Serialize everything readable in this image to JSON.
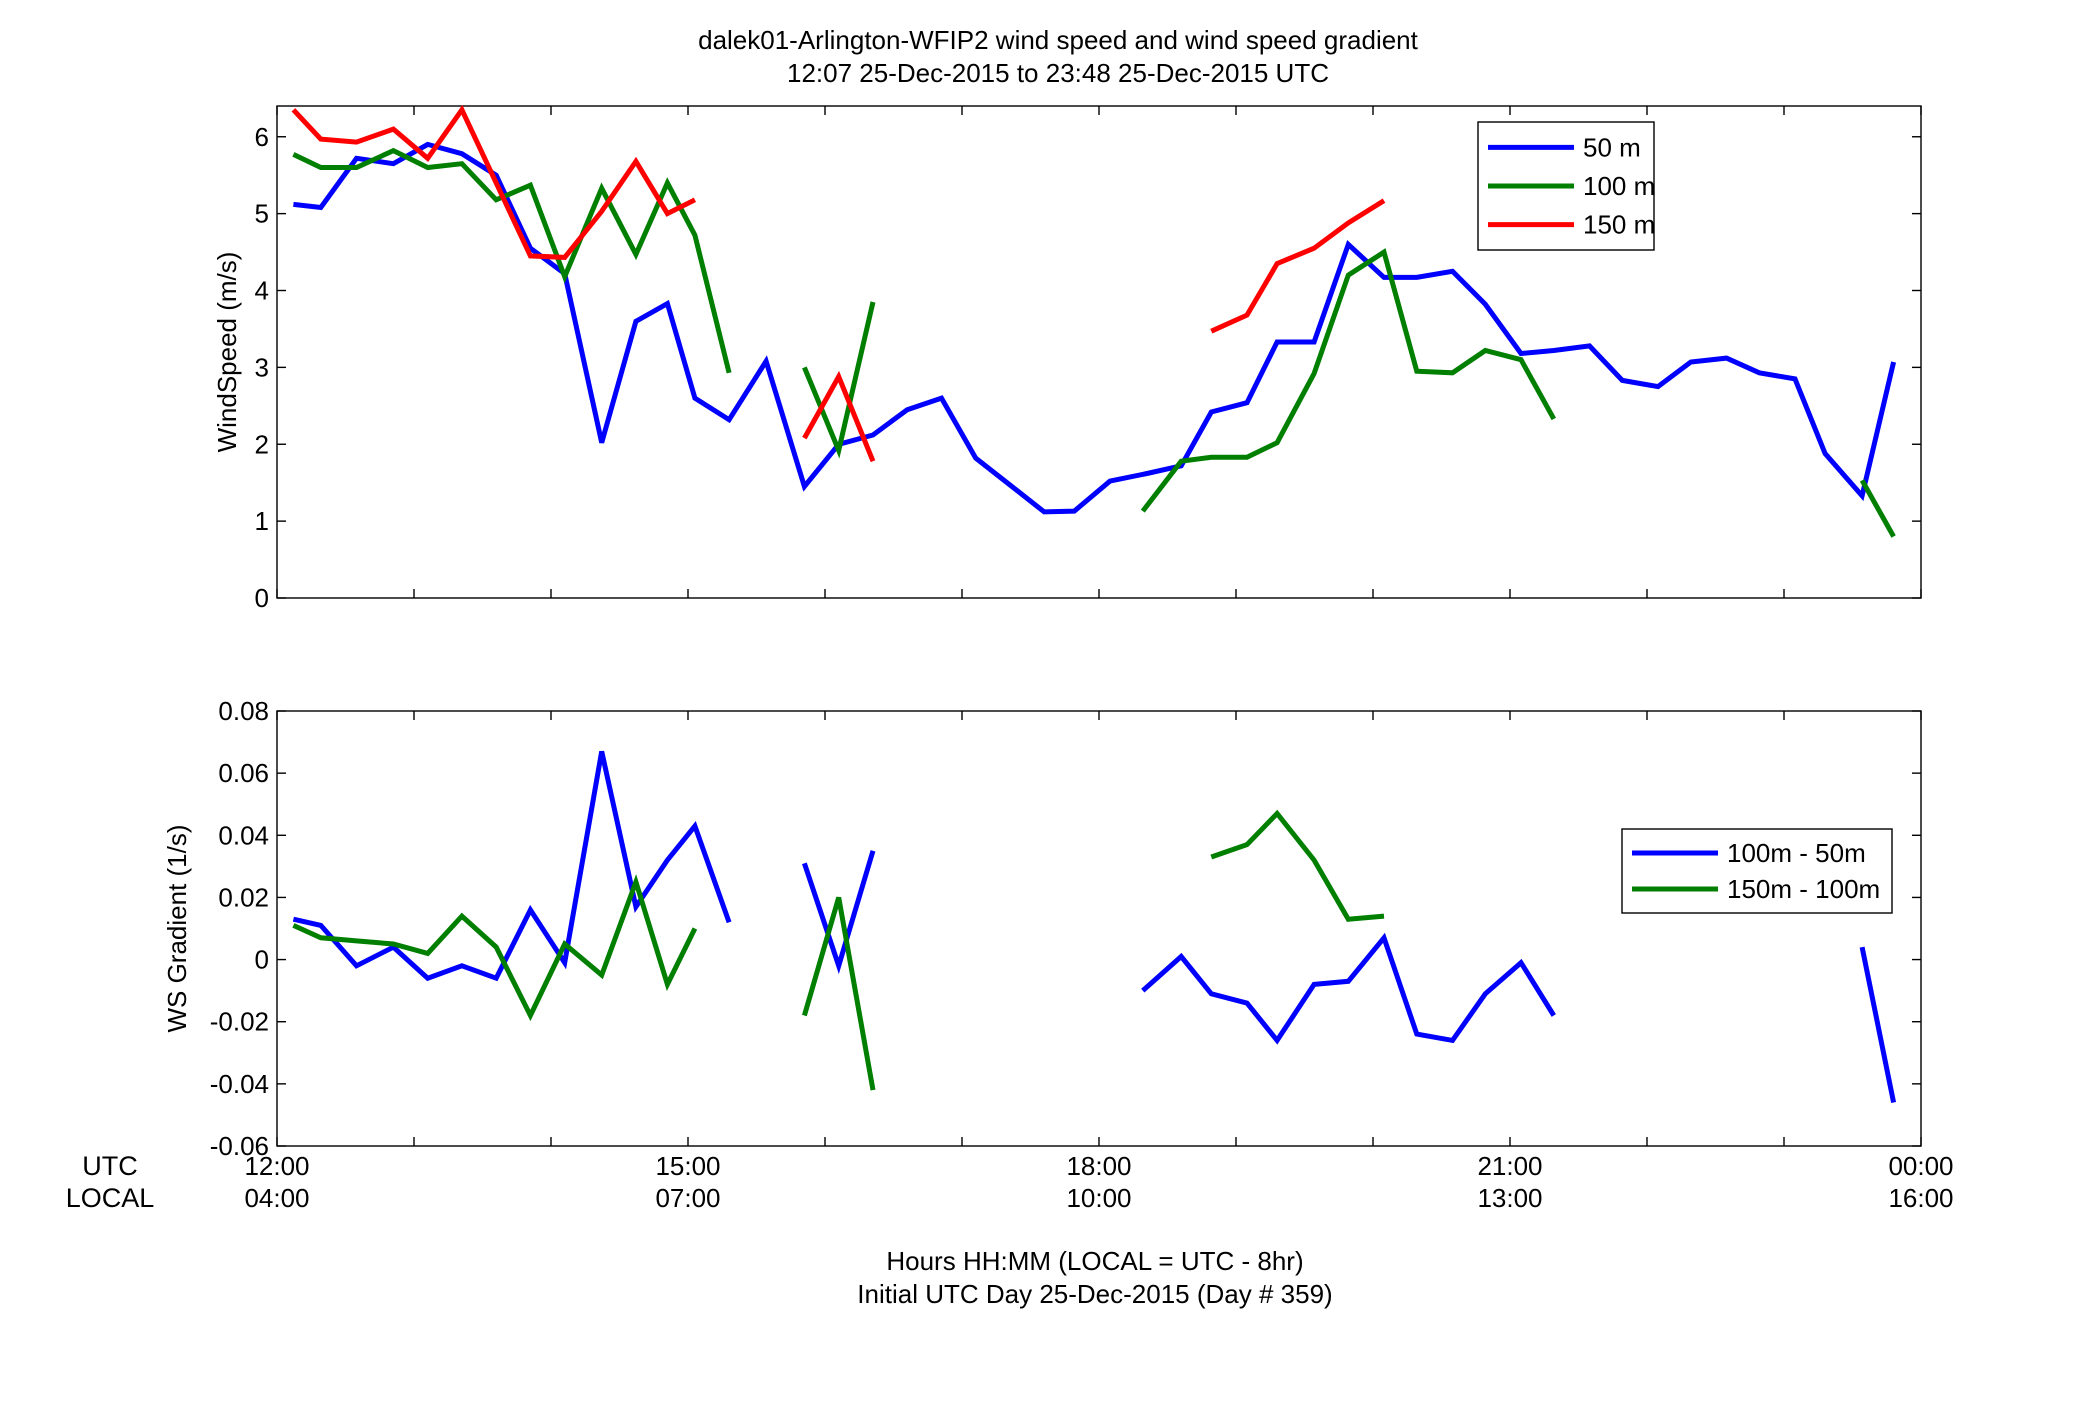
{
  "title_line1": "dalek01-Arlington-WFIP2  wind speed and wind speed gradient",
  "title_line2": "12:07 25-Dec-2015 to 23:48 25-Dec-2015  UTC",
  "row_labels": {
    "utc": "UTC",
    "local": "LOCAL"
  },
  "time_ticks": [
    {
      "hour": 12,
      "utc": "12:00",
      "local": "04:00"
    },
    {
      "hour": 15,
      "utc": "15:00",
      "local": "07:00"
    },
    {
      "hour": 18,
      "utc": "18:00",
      "local": "10:00"
    },
    {
      "hour": 21,
      "utc": "21:00",
      "local": "13:00"
    },
    {
      "hour": 24,
      "utc": "00:00",
      "local": "16:00"
    }
  ],
  "xlabel_line1": "Hours HH:MM  (LOCAL = UTC - 8hr)",
  "xlabel_line2": "Initial UTC Day 25-Dec-2015 (Day # 359)",
  "colors": {
    "blue": "#0000ff",
    "green": "#007f00",
    "red": "#ff0000"
  },
  "chart_data": [
    {
      "type": "line",
      "ylabel": "WindSpeed (m/s)",
      "xlim": [
        12,
        24
      ],
      "ylim": [
        0,
        6.4
      ],
      "yticks": [
        0,
        1,
        2,
        3,
        4,
        5,
        6
      ],
      "ytick_labels": [
        "0",
        "1",
        "2",
        "3",
        "4",
        "5",
        "6"
      ],
      "legend_position": "top-right",
      "series": [
        {
          "name": "50 m",
          "color": "#0000ff",
          "segments": [
            [
              [
                12.12,
                5.12
              ],
              [
                12.32,
                5.08
              ],
              [
                12.58,
                5.72
              ],
              [
                12.85,
                5.65
              ],
              [
                13.1,
                5.9
              ],
              [
                13.35,
                5.78
              ],
              [
                13.6,
                5.5
              ],
              [
                13.85,
                4.55
              ],
              [
                14.1,
                4.22
              ],
              [
                14.37,
                2.02
              ],
              [
                14.62,
                3.6
              ],
              [
                14.85,
                3.83
              ],
              [
                15.05,
                2.6
              ],
              [
                15.3,
                2.32
              ],
              [
                15.57,
                3.08
              ],
              [
                15.85,
                1.45
              ],
              [
                16.1,
                2.0
              ],
              [
                16.35,
                2.12
              ],
              [
                16.6,
                2.45
              ],
              [
                16.85,
                2.6
              ],
              [
                17.1,
                1.82
              ],
              [
                17.35,
                1.47
              ],
              [
                17.6,
                1.12
              ],
              [
                17.82,
                1.13
              ],
              [
                18.08,
                1.52
              ],
              [
                18.35,
                1.62
              ],
              [
                18.6,
                1.72
              ],
              [
                18.82,
                2.42
              ],
              [
                19.08,
                2.54
              ],
              [
                19.3,
                3.33
              ],
              [
                19.57,
                3.33
              ],
              [
                19.82,
                4.6
              ],
              [
                20.08,
                4.17
              ],
              [
                20.32,
                4.17
              ],
              [
                20.58,
                4.25
              ],
              [
                20.82,
                3.82
              ],
              [
                21.08,
                3.18
              ],
              [
                21.32,
                3.22
              ],
              [
                21.58,
                3.28
              ],
              [
                21.82,
                2.83
              ],
              [
                22.08,
                2.75
              ],
              [
                22.32,
                3.07
              ],
              [
                22.58,
                3.12
              ],
              [
                22.82,
                2.93
              ],
              [
                23.08,
                2.85
              ],
              [
                23.3,
                1.88
              ],
              [
                23.57,
                1.33
              ],
              [
                23.8,
                3.07
              ]
            ]
          ]
        },
        {
          "name": "100 m",
          "color": "#007f00",
          "segments": [
            [
              [
                12.12,
                5.77
              ],
              [
                12.32,
                5.6
              ],
              [
                12.58,
                5.6
              ],
              [
                12.85,
                5.82
              ],
              [
                13.1,
                5.6
              ],
              [
                13.35,
                5.65
              ],
              [
                13.6,
                5.18
              ],
              [
                13.85,
                5.37
              ],
              [
                14.1,
                4.18
              ],
              [
                14.37,
                5.33
              ],
              [
                14.62,
                4.47
              ],
              [
                14.85,
                5.4
              ],
              [
                15.05,
                4.72
              ],
              [
                15.3,
                2.93
              ]
            ],
            [
              [
                15.85,
                3.0
              ],
              [
                16.1,
                1.92
              ],
              [
                16.35,
                3.85
              ]
            ],
            [
              [
                18.32,
                1.13
              ],
              [
                18.6,
                1.78
              ],
              [
                18.82,
                1.83
              ],
              [
                19.08,
                1.83
              ],
              [
                19.3,
                2.02
              ],
              [
                19.57,
                2.92
              ],
              [
                19.82,
                4.2
              ],
              [
                20.08,
                4.5
              ],
              [
                20.32,
                2.95
              ],
              [
                20.58,
                2.93
              ],
              [
                20.82,
                3.22
              ],
              [
                21.08,
                3.1
              ],
              [
                21.32,
                2.33
              ]
            ],
            [
              [
                23.57,
                1.53
              ],
              [
                23.8,
                0.8
              ]
            ]
          ]
        },
        {
          "name": "150 m",
          "color": "#ff0000",
          "segments": [
            [
              [
                12.12,
                6.35
              ],
              [
                12.32,
                5.97
              ],
              [
                12.58,
                5.93
              ],
              [
                12.85,
                6.1
              ],
              [
                13.1,
                5.72
              ],
              [
                13.35,
                6.35
              ],
              [
                13.6,
                5.4
              ],
              [
                13.85,
                4.45
              ],
              [
                14.1,
                4.43
              ],
              [
                14.37,
                5.03
              ],
              [
                14.62,
                5.68
              ],
              [
                14.85,
                5.0
              ],
              [
                15.05,
                5.18
              ]
            ],
            [
              [
                15.85,
                2.08
              ],
              [
                16.1,
                2.88
              ],
              [
                16.35,
                1.78
              ]
            ],
            [
              [
                18.82,
                3.47
              ],
              [
                19.08,
                3.68
              ],
              [
                19.3,
                4.35
              ],
              [
                19.57,
                4.55
              ],
              [
                19.82,
                4.88
              ],
              [
                20.08,
                5.17
              ]
            ]
          ]
        }
      ]
    },
    {
      "type": "line",
      "ylabel": "WS Gradient (1/s)",
      "xlim": [
        12,
        24
      ],
      "ylim": [
        -0.06,
        0.08
      ],
      "yticks": [
        -0.06,
        -0.04,
        -0.02,
        0,
        0.02,
        0.04,
        0.06,
        0.08
      ],
      "ytick_labels": [
        "-0.06",
        "-0.04",
        "-0.02",
        "0",
        "0.02",
        "0.04",
        "0.06",
        "0.08"
      ],
      "legend_position": "right",
      "series": [
        {
          "name": "100m - 50m",
          "color": "#0000ff",
          "segments": [
            [
              [
                12.12,
                0.013
              ],
              [
                12.32,
                0.011
              ],
              [
                12.58,
                -0.002
              ],
              [
                12.85,
                0.004
              ],
              [
                13.1,
                -0.006
              ],
              [
                13.35,
                -0.002
              ],
              [
                13.6,
                -0.006
              ],
              [
                13.85,
                0.016
              ],
              [
                14.1,
                -0.001
              ],
              [
                14.37,
                0.067
              ],
              [
                14.62,
                0.017
              ],
              [
                14.85,
                0.032
              ],
              [
                15.05,
                0.043
              ],
              [
                15.3,
                0.012
              ]
            ],
            [
              [
                15.85,
                0.031
              ],
              [
                16.1,
                -0.002
              ],
              [
                16.35,
                0.035
              ]
            ],
            [
              [
                18.32,
                -0.01
              ],
              [
                18.6,
                0.001
              ],
              [
                18.82,
                -0.011
              ],
              [
                19.08,
                -0.014
              ],
              [
                19.3,
                -0.026
              ],
              [
                19.57,
                -0.008
              ],
              [
                19.82,
                -0.007
              ],
              [
                20.08,
                0.007
              ],
              [
                20.32,
                -0.024
              ],
              [
                20.58,
                -0.026
              ],
              [
                20.82,
                -0.011
              ],
              [
                21.08,
                -0.001
              ],
              [
                21.32,
                -0.018
              ]
            ],
            [
              [
                23.57,
                0.004
              ],
              [
                23.8,
                -0.046
              ]
            ]
          ]
        },
        {
          "name": "150m - 100m",
          "color": "#007f00",
          "segments": [
            [
              [
                12.12,
                0.011
              ],
              [
                12.32,
                0.007
              ],
              [
                12.58,
                0.006
              ],
              [
                12.85,
                0.005
              ],
              [
                13.1,
                0.002
              ],
              [
                13.35,
                0.014
              ],
              [
                13.6,
                0.004
              ],
              [
                13.85,
                -0.018
              ],
              [
                14.1,
                0.005
              ],
              [
                14.37,
                -0.005
              ],
              [
                14.62,
                0.025
              ],
              [
                14.85,
                -0.008
              ],
              [
                15.05,
                0.01
              ]
            ],
            [
              [
                15.85,
                -0.018
              ],
              [
                16.1,
                0.02
              ],
              [
                16.35,
                -0.042
              ]
            ],
            [
              [
                18.82,
                0.033
              ],
              [
                19.08,
                0.037
              ],
              [
                19.3,
                0.047
              ],
              [
                19.57,
                0.032
              ],
              [
                19.82,
                0.013
              ],
              [
                20.08,
                0.014
              ]
            ]
          ]
        }
      ]
    }
  ]
}
